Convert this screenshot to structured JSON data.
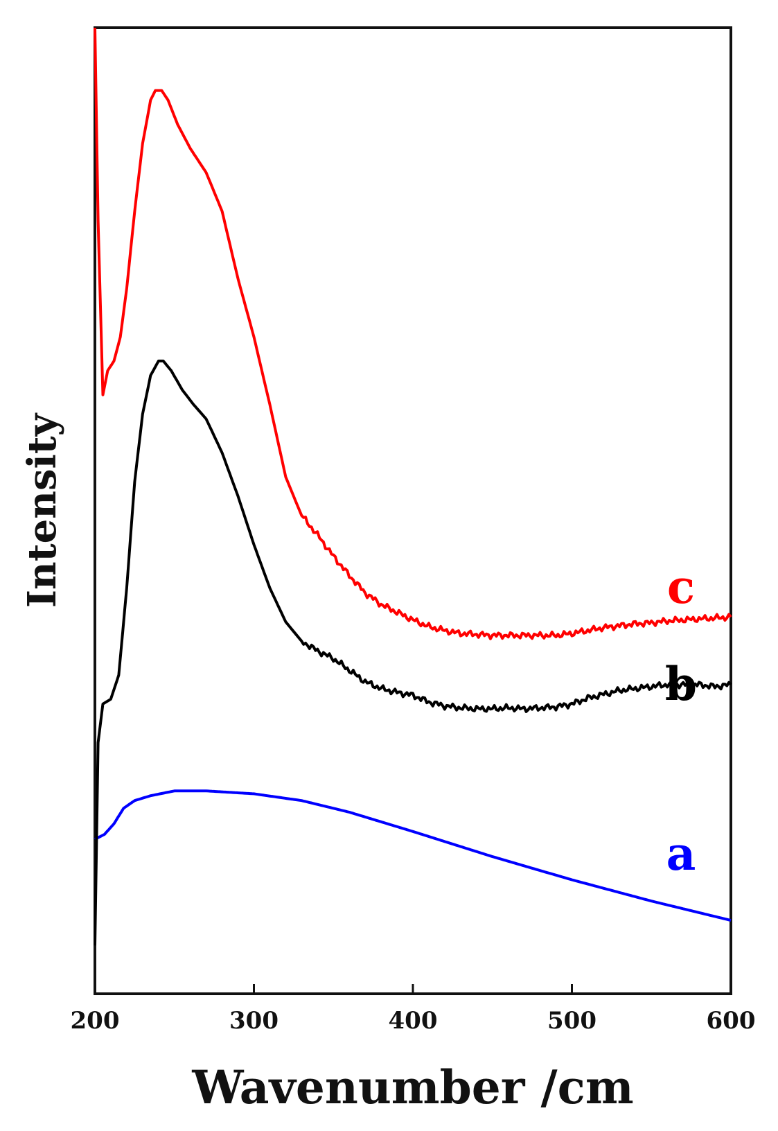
{
  "chart_data": {
    "type": "line",
    "title": "",
    "xlabel": "Wavenumber /cm",
    "ylabel": "Intensity",
    "xlim": [
      200,
      600
    ],
    "ylim": [
      0,
      100
    ],
    "x_ticks": [
      "200",
      "300",
      "400",
      "500",
      "600"
    ],
    "y_ticks": [],
    "grid": false,
    "legend": "none",
    "series": [
      {
        "label": "a",
        "color": "#0000ff",
        "x": [
          200,
          206,
          212,
          218,
          225,
          235,
          250,
          270,
          300,
          330,
          360,
          400,
          450,
          500,
          550,
          600
        ],
        "y": [
          16.0,
          16.5,
          17.6,
          19.2,
          20.0,
          20.5,
          21.0,
          21.0,
          20.7,
          20.0,
          18.8,
          16.8,
          14.2,
          11.8,
          9.6,
          7.6
        ]
      },
      {
        "label": "b",
        "color": "#000000",
        "x": [
          200,
          202,
          205,
          210,
          215,
          220,
          225,
          230,
          235,
          240,
          243,
          248,
          255,
          262,
          270,
          280,
          290,
          300,
          310,
          320,
          330,
          340,
          350,
          360,
          370,
          380,
          390,
          400,
          410,
          420,
          430,
          440,
          450,
          460,
          470,
          480,
          490,
          500,
          510,
          520,
          530,
          540,
          550,
          560,
          570,
          580,
          590,
          600
        ],
        "y": [
          5,
          26,
          30,
          30.5,
          33,
          42,
          53,
          60,
          64,
          65.5,
          65.5,
          64.5,
          62.5,
          61,
          59.5,
          56,
          51.5,
          46.5,
          42,
          38.5,
          36.5,
          35.5,
          34.7,
          33.5,
          32.3,
          31.6,
          31.2,
          30.9,
          30.2,
          29.8,
          29.6,
          29.5,
          29.5,
          29.6,
          29.5,
          29.6,
          29.7,
          30.0,
          30.6,
          31.0,
          31.4,
          31.6,
          31.8,
          32.0,
          32.0,
          32.0,
          31.8,
          32.0
        ]
      },
      {
        "label": "c",
        "color": "#ff0000",
        "x": [
          200,
          202,
          205,
          208,
          212,
          216,
          220,
          225,
          230,
          235,
          238,
          242,
          246,
          252,
          260,
          270,
          280,
          290,
          300,
          310,
          320,
          330,
          340,
          350,
          360,
          370,
          380,
          390,
          400,
          410,
          420,
          430,
          440,
          450,
          460,
          470,
          480,
          490,
          500,
          510,
          520,
          530,
          540,
          550,
          560,
          570,
          580,
          590,
          600
        ],
        "y": [
          100,
          80,
          62,
          64.5,
          65.5,
          68,
          73,
          81,
          88,
          92.5,
          93.5,
          93.5,
          92.5,
          90,
          87.5,
          85,
          81,
          74,
          68,
          61,
          53.5,
          49.5,
          47.5,
          45.3,
          43.3,
          41.5,
          40.3,
          39.5,
          38.7,
          38.0,
          37.6,
          37.3,
          37.2,
          37.1,
          37.1,
          37.1,
          37.1,
          37.1,
          37.3,
          37.6,
          37.9,
          38.1,
          38.3,
          38.4,
          38.6,
          38.7,
          38.8,
          38.9,
          39.0
        ]
      }
    ]
  }
}
